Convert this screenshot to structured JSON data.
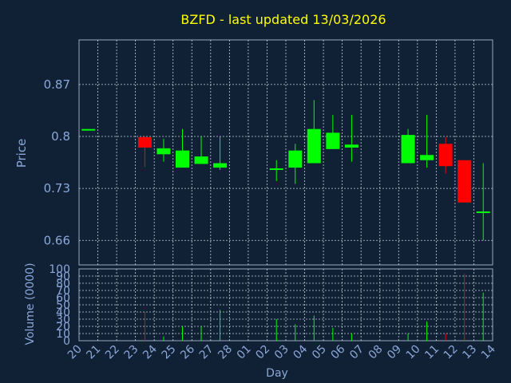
{
  "chart_data": {
    "type": "candlestick",
    "title": "BZFD - last updated 13/03/2026",
    "xlabel": "Day",
    "ylabel": "Price",
    "volume_label": "Volume (0000)",
    "grid": true,
    "price_ticks": [
      0.66,
      0.73,
      0.8,
      0.87
    ],
    "price_tick_labels": [
      "0.66",
      "0.73",
      "0.8",
      "0.87"
    ],
    "price_range": [
      0.627,
      0.93
    ],
    "volume_ticks": [
      0,
      10,
      20,
      30,
      40,
      50,
      60,
      70,
      80,
      90,
      100
    ],
    "volume_range": [
      0,
      100
    ],
    "day_labels": [
      "20",
      "21",
      "22",
      "23",
      "24",
      "25",
      "26",
      "27",
      "28",
      "01",
      "02",
      "03",
      "04",
      "05",
      "06",
      "07",
      "08",
      "09",
      "10",
      "11",
      "12",
      "13",
      "14"
    ],
    "candles": [
      {
        "day": "20",
        "open": 0.81,
        "high": 0.81,
        "low": 0.81,
        "close": 0.81,
        "volume": 0
      },
      {
        "day": "23",
        "open": 0.799,
        "high": 0.8,
        "low": 0.759,
        "close": 0.785,
        "volume": 40
      },
      {
        "day": "24",
        "open": 0.776,
        "high": 0.797,
        "low": 0.766,
        "close": 0.784,
        "volume": 6
      },
      {
        "day": "25",
        "open": 0.758,
        "high": 0.81,
        "low": 0.758,
        "close": 0.781,
        "volume": 20
      },
      {
        "day": "26",
        "open": 0.763,
        "high": 0.8,
        "low": 0.763,
        "close": 0.773,
        "volume": 20
      },
      {
        "day": "27",
        "open": 0.758,
        "high": 0.8,
        "low": 0.755,
        "close": 0.764,
        "volume": 43
      },
      {
        "day": "02",
        "open": 0.757,
        "high": 0.768,
        "low": 0.74,
        "close": 0.757,
        "volume": 30
      },
      {
        "day": "03",
        "open": 0.758,
        "high": 0.79,
        "low": 0.736,
        "close": 0.781,
        "volume": 23
      },
      {
        "day": "04",
        "open": 0.764,
        "high": 0.849,
        "low": 0.764,
        "close": 0.81,
        "volume": 35
      },
      {
        "day": "05",
        "open": 0.783,
        "high": 0.829,
        "low": 0.783,
        "close": 0.805,
        "volume": 18
      },
      {
        "day": "06",
        "open": 0.785,
        "high": 0.829,
        "low": 0.766,
        "close": 0.789,
        "volume": 10
      },
      {
        "day": "09",
        "open": 0.764,
        "high": 0.81,
        "low": 0.764,
        "close": 0.802,
        "volume": 10
      },
      {
        "day": "10",
        "open": 0.768,
        "high": 0.829,
        "low": 0.758,
        "close": 0.775,
        "volume": 27
      },
      {
        "day": "11",
        "open": 0.79,
        "high": 0.799,
        "low": 0.75,
        "close": 0.76,
        "volume": 10
      },
      {
        "day": "12",
        "open": 0.768,
        "high": 0.768,
        "low": 0.711,
        "close": 0.711,
        "volume": 93
      },
      {
        "day": "13",
        "open": 0.699,
        "high": 0.764,
        "low": 0.66,
        "close": 0.699,
        "volume": 67
      }
    ],
    "colors": {
      "background": "#102035",
      "axes": "#98a8c0",
      "grid": "#c8d0da",
      "title": "#ffff00",
      "labels": "#8ca8d8",
      "up": "#00ff00",
      "down": "#ff0000"
    }
  }
}
